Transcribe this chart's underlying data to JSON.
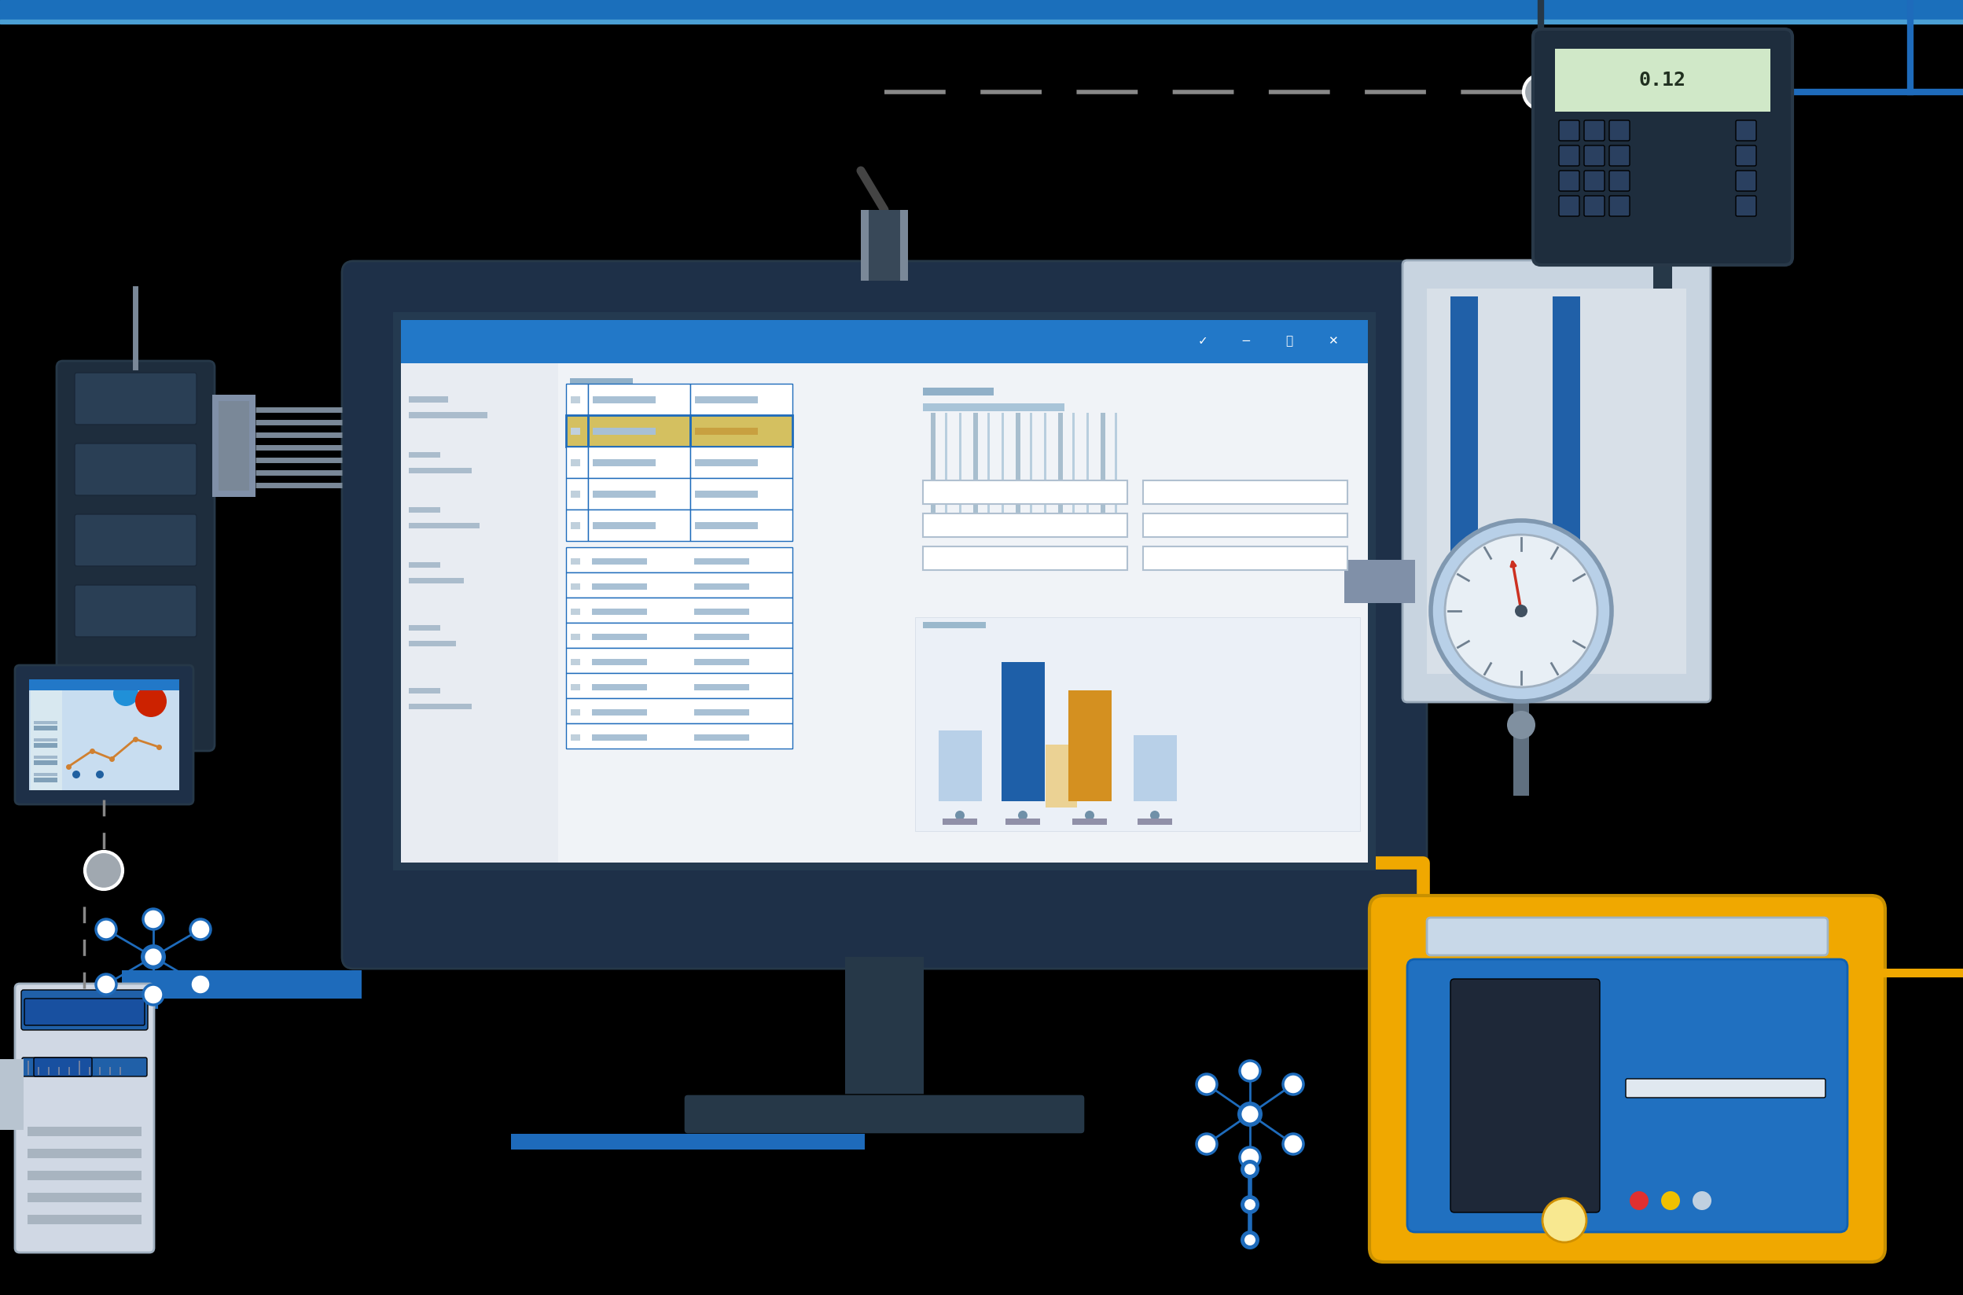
{
  "bg_color": "#000000",
  "top_bar_color": "#1b6fbb",
  "top_bar_thin_color": "#4a9fd4",
  "monitor_body_color": "#1e3048",
  "monitor_screen_color": "#243a50",
  "window_bar_color": "#2278c8",
  "window_content_bg": "#f0f3f7",
  "window_sidebar_bg": "#e8ecf2",
  "excel_cell_bg": "#ffffff",
  "excel_highlight_row": "#d4c060",
  "excel_border_color": "#1e6bbb",
  "excel_text_light": "#a8c0d4",
  "bar_blue_dark": "#1e5fa8",
  "bar_yellow": "#d49020",
  "bar_light_blue": "#b8d0e8",
  "server_dark": "#1e2d3d",
  "server_mid": "#2a3f55",
  "cable_gray": "#7a8898",
  "cable_dark": "#384858",
  "connector_gray": "#8090a8",
  "usb_gray": "#7a8898",
  "usb_dark": "#384858",
  "blue_cable": "#1e6bbb",
  "yellow_cable": "#f0a800",
  "dashed_gray": "#888888",
  "panel_bg": "#c8d4e0",
  "panel_inner": "#d8e0e8",
  "panel_bar_blue": "#2060a8",
  "gauge_outer": "#b8d0e8",
  "gauge_inner": "#e8eff5",
  "gauge_ring": "#8098b0",
  "gauge_needle": "#cc3020",
  "scale_yellow": "#f0a800",
  "scale_blue": "#2070c0",
  "scale_dark": "#1e3050",
  "scale_display_bg": "#2060b0",
  "network_blue": "#1e6bbb",
  "laptop_bg": "#1e3048",
  "laptop_screen": "#c8ddf0",
  "caliper_bg": "#d8dfe8",
  "caliper_blue": "#2060a8",
  "digital_display_bg": "#1e2d3d",
  "digital_screen": "#d0e8c8",
  "keypad_btn": "#2a4060"
}
